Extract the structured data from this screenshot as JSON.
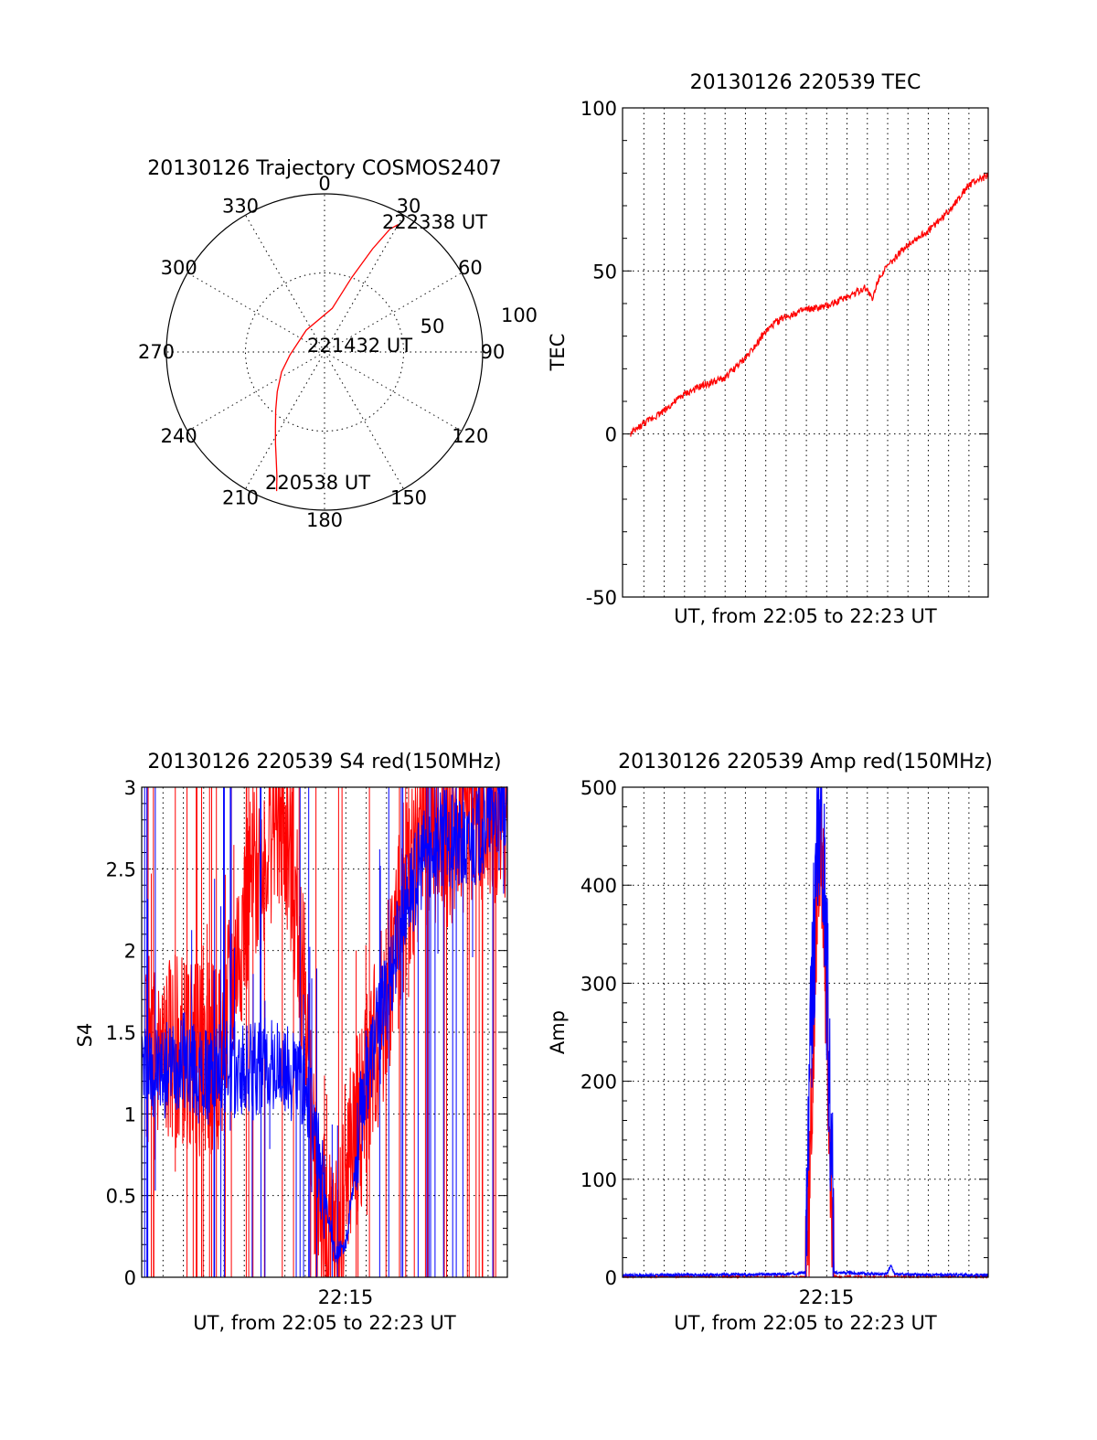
{
  "figure": {
    "background": "#ffffff"
  },
  "chart_data": [
    {
      "id": "polar",
      "type": "scatter",
      "title": "20130126 Trajectory COSMOS2407",
      "coordinate_system": "polar",
      "angle_labels": [
        "0",
        "30",
        "60",
        "90",
        "120",
        "150",
        "180",
        "210",
        "240",
        "270",
        "300",
        "330"
      ],
      "radius_labels": [
        "50",
        "100"
      ],
      "annotations": [
        "222338 UT",
        "221432 UT",
        "220538 UT"
      ],
      "series": [
        {
          "color": "#ff0000",
          "azimuth_deg": [
            199,
            201,
            204,
            208,
            213,
            220,
            230,
            245,
            265,
            320,
            10,
            20,
            25,
            28,
            30
          ],
          "radius": [
            93,
            84,
            75,
            66,
            57,
            48,
            39,
            30,
            22,
            18,
            28,
            50,
            72,
            88,
            93
          ]
        }
      ]
    },
    {
      "id": "tec",
      "type": "line",
      "title": "20130126 220539 TEC",
      "xlabel": "UT, from 22:05 to 22:23 UT",
      "ylabel": "TEC",
      "ylim": [
        -50,
        100
      ],
      "yticks": [
        "-50",
        "0",
        "50",
        "100"
      ],
      "xlim_minutes": [
        0,
        18
      ],
      "series": [
        {
          "color": "#ff0000",
          "x_minutes": [
            0.4,
            1.0,
            2.0,
            3.0,
            4.0,
            5.0,
            6.0,
            7.0,
            7.5,
            8.0,
            8.5,
            9.0,
            10.0,
            11.0,
            12.0,
            12.3,
            12.6,
            13.0,
            14.0,
            15.0,
            16.0,
            17.0,
            17.5,
            18.0
          ],
          "y": [
            0,
            3,
            7,
            12,
            15,
            17,
            23,
            31,
            34,
            36,
            37,
            38,
            39,
            42,
            45,
            41,
            48,
            51,
            58,
            62,
            68,
            76,
            78,
            79
          ]
        }
      ]
    },
    {
      "id": "s4",
      "type": "line",
      "title": "20130126 220539 S4 red(150MHz)",
      "xlabel": "UT, from 22:05 to 22:23 UT",
      "xtick_label": "22:15",
      "ylabel": "S4",
      "ylim": [
        0,
        3
      ],
      "yticks": [
        "0",
        "0.5",
        "1",
        "1.5",
        "2",
        "2.5",
        "3"
      ],
      "xlim_minutes": [
        0,
        18
      ],
      "series": [
        {
          "color": "#ff0000",
          "x_minutes": [
            0.2,
            1.0,
            2.0,
            3.0,
            4.0,
            5.0,
            6.0,
            6.7,
            7.2,
            8.0,
            8.5,
            9.0,
            9.3,
            9.7,
            10.0,
            11.0,
            12.0,
            13.0,
            14.0,
            15.0,
            16.0,
            17.0,
            18.0
          ],
          "y": [
            1.4,
            1.35,
            1.4,
            1.3,
            1.4,
            2.2,
            2.6,
            2.9,
            2.6,
            1.8,
            0.7,
            0.3,
            0.2,
            0.2,
            0.6,
            1.1,
            1.7,
            2.4,
            2.8,
            2.7,
            2.9,
            2.8,
            2.9
          ]
        },
        {
          "color": "#0000ff",
          "x_minutes": [
            0.0,
            1.0,
            2.0,
            3.0,
            4.0,
            5.0,
            6.0,
            7.0,
            8.0,
            8.5,
            9.0,
            9.5,
            10.0,
            11.0,
            12.0,
            13.0,
            14.0,
            15.0,
            16.0,
            17.0,
            18.0
          ],
          "y": [
            1.3,
            1.25,
            1.35,
            1.2,
            1.3,
            1.25,
            1.3,
            1.25,
            1.2,
            0.9,
            0.5,
            0.15,
            0.15,
            1.2,
            1.7,
            2.3,
            2.6,
            2.7,
            2.6,
            2.8,
            2.9
          ]
        }
      ]
    },
    {
      "id": "amp",
      "type": "line",
      "title": "20130126 220539 Amp red(150MHz)",
      "xlabel": "UT, from 22:05 to 22:23 UT",
      "xtick_label": "22:15",
      "ylabel": "Amp",
      "ylim": [
        0,
        500
      ],
      "yticks": [
        "0",
        "100",
        "200",
        "300",
        "400",
        "500"
      ],
      "xlim_minutes": [
        0,
        18
      ],
      "series": [
        {
          "color": "#ff0000",
          "x_minutes": [
            0.0,
            9.0,
            9.2,
            9.4,
            9.6,
            9.8,
            10.0,
            10.2,
            10.4,
            18.0
          ],
          "y": [
            0,
            0,
            80,
            250,
            430,
            440,
            300,
            120,
            0,
            0
          ]
        },
        {
          "color": "#0000ff",
          "x_minutes": [
            0.0,
            8.0,
            9.0,
            9.2,
            9.4,
            9.6,
            9.8,
            10.0,
            10.2,
            10.4,
            13.0,
            13.2,
            13.4,
            18.0
          ],
          "y": [
            2,
            3,
            5,
            180,
            320,
            470,
            500,
            350,
            200,
            5,
            3,
            12,
            3,
            2
          ]
        }
      ]
    }
  ]
}
